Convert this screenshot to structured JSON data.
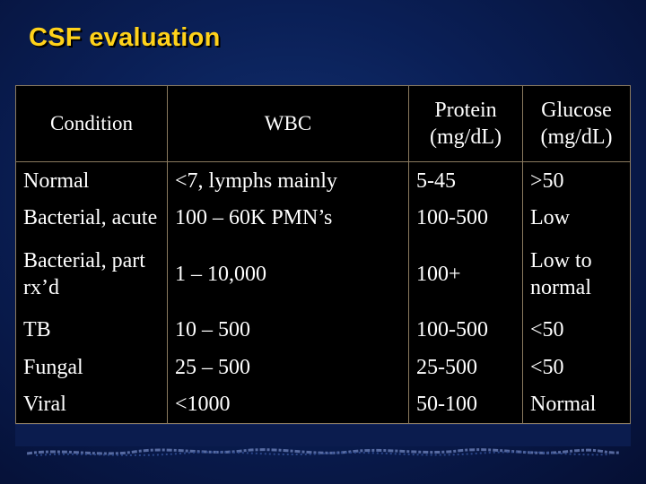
{
  "title": "CSF evaluation",
  "table": {
    "headers": [
      "Condition",
      "WBC",
      "Protein (mg/dL)",
      "Glucose (mg/dL)"
    ],
    "rows": [
      [
        "Normal",
        "<7, lymphs mainly",
        "5-45",
        ">50"
      ],
      [
        "Bacterial, acute",
        "100 – 60K PMN’s",
        "100-500",
        "Low"
      ],
      [
        "Bacterial, part rx’d",
        "1 – 10,000",
        "100+",
        "Low to normal"
      ],
      [
        "TB",
        "10 – 500",
        "100-500",
        "<50"
      ],
      [
        "Fungal",
        "25 – 500",
        "25-500",
        "<50"
      ],
      [
        "Viral",
        "<1000",
        "50-100",
        "Normal"
      ]
    ]
  }
}
